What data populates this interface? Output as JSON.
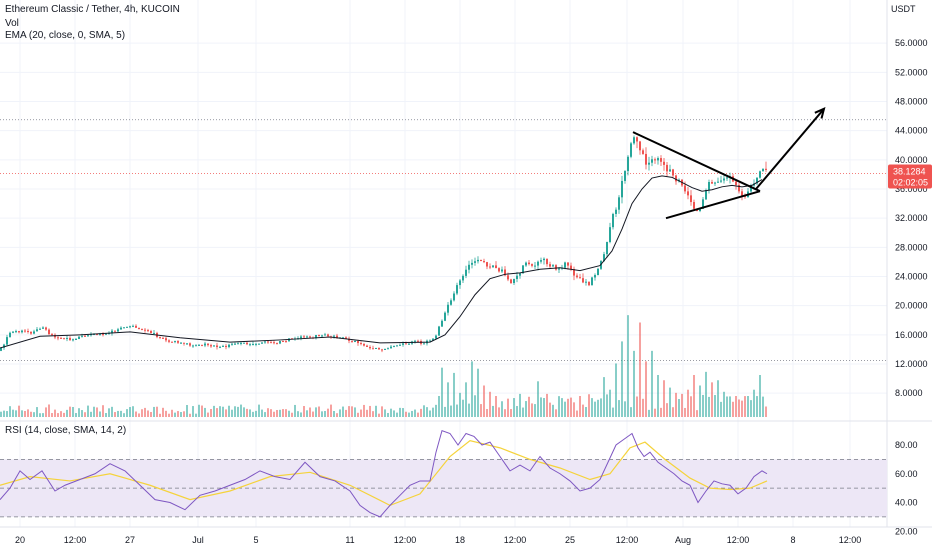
{
  "header": {
    "symbol_title": "Ethereum Classic / Tether, 4h, KUCOIN",
    "volume_label": "Vol",
    "ema_label": "EMA (20, close, 0, SMA, 5)",
    "currency": "USDT",
    "rsi_label": "RSI (14, close, SMA, 14, 2)"
  },
  "colors": {
    "up": "#26a69a",
    "down": "#ef5350",
    "ema": "#131722",
    "rsi": "#7e57c2",
    "rsi_ma": "#f5d33b",
    "rsi_band": "#ede7f6",
    "price_line": "#ef5350"
  },
  "price_badge": {
    "price": "38.1284",
    "countdown": "02:02:05"
  },
  "chart_data": [
    {
      "type": "candlestick",
      "title": "Ethereum Classic / Tether, 4h, KUCOIN",
      "x_ticks": [
        "20",
        "12:00",
        "27",
        "Jul",
        "5",
        "11",
        "12:00",
        "18",
        "12:00",
        "25",
        "12:00",
        "Aug",
        "12:00",
        "8",
        "12:00"
      ],
      "y_ticks": [
        "56.0000",
        "52.0000",
        "48.0000",
        "44.0000",
        "40.0000",
        "36.0000",
        "32.0000",
        "28.0000",
        "24.0000",
        "20.0000",
        "16.0000",
        "12.0000",
        "8.0000"
      ],
      "ylim": [
        6,
        58
      ],
      "last_price": 38.1284,
      "key_level": 45.5,
      "support_level": 12.5,
      "price_path": [
        [
          0,
          13.8
        ],
        [
          10,
          16.3
        ],
        [
          20,
          16.6
        ],
        [
          30,
          16.2
        ],
        [
          42,
          17.0
        ],
        [
          55,
          15.6
        ],
        [
          70,
          15.3
        ],
        [
          85,
          15.9
        ],
        [
          100,
          16.1
        ],
        [
          115,
          16.5
        ],
        [
          130,
          17.2
        ],
        [
          145,
          16.6
        ],
        [
          160,
          15.6
        ],
        [
          175,
          15.0
        ],
        [
          190,
          14.6
        ],
        [
          205,
          14.7
        ],
        [
          220,
          14.4
        ],
        [
          235,
          14.7
        ],
        [
          250,
          14.9
        ],
        [
          265,
          14.9
        ],
        [
          280,
          15.0
        ],
        [
          295,
          15.5
        ],
        [
          310,
          15.7
        ],
        [
          325,
          15.9
        ],
        [
          340,
          15.6
        ],
        [
          355,
          15.1
        ],
        [
          370,
          14.3
        ],
        [
          385,
          14.0
        ],
        [
          400,
          14.6
        ],
        [
          415,
          15.0
        ],
        [
          428,
          15.0
        ],
        [
          436,
          16.0
        ],
        [
          442,
          18.0
        ],
        [
          448,
          20.0
        ],
        [
          455,
          22.0
        ],
        [
          462,
          24.0
        ],
        [
          470,
          26.0
        ],
        [
          478,
          26.4
        ],
        [
          486,
          25.6
        ],
        [
          494,
          25.4
        ],
        [
          502,
          24.6
        ],
        [
          510,
          23.0
        ],
        [
          518,
          24.5
        ],
        [
          526,
          25.8
        ],
        [
          534,
          25.6
        ],
        [
          542,
          26.5
        ],
        [
          550,
          25.5
        ],
        [
          558,
          25.0
        ],
        [
          566,
          25.6
        ],
        [
          574,
          24.4
        ],
        [
          582,
          23.5
        ],
        [
          590,
          23.2
        ],
        [
          598,
          25.0
        ],
        [
          606,
          28.0
        ],
        [
          612,
          32.0
        ],
        [
          618,
          34.0
        ],
        [
          624,
          38.0
        ],
        [
          630,
          42.0
        ],
        [
          636,
          43.0
        ],
        [
          642,
          41.0
        ],
        [
          648,
          39.5
        ],
        [
          654,
          40.0
        ],
        [
          660,
          39.8
        ],
        [
          666,
          39.0
        ],
        [
          672,
          38.0
        ],
        [
          678,
          37.0
        ],
        [
          684,
          36.0
        ],
        [
          690,
          34.5
        ],
        [
          696,
          33.0
        ],
        [
          702,
          33.8
        ],
        [
          708,
          36.5
        ],
        [
          714,
          37.0
        ],
        [
          720,
          37.0
        ],
        [
          726,
          37.5
        ],
        [
          732,
          37.0
        ],
        [
          738,
          35.5
        ],
        [
          744,
          35.0
        ],
        [
          750,
          36.0
        ],
        [
          756,
          37.5
        ],
        [
          762,
          38.6
        ],
        [
          767,
          38.3
        ]
      ],
      "ema_path": [
        [
          0,
          14.2
        ],
        [
          40,
          15.8
        ],
        [
          80,
          16.0
        ],
        [
          130,
          16.4
        ],
        [
          180,
          15.6
        ],
        [
          230,
          15.0
        ],
        [
          280,
          15.3
        ],
        [
          330,
          15.7
        ],
        [
          380,
          14.9
        ],
        [
          430,
          15.0
        ],
        [
          445,
          16.0
        ],
        [
          460,
          18.5
        ],
        [
          475,
          21.5
        ],
        [
          490,
          23.7
        ],
        [
          505,
          24.3
        ],
        [
          520,
          24.5
        ],
        [
          540,
          25.0
        ],
        [
          560,
          25.2
        ],
        [
          580,
          24.8
        ],
        [
          600,
          25.5
        ],
        [
          612,
          27.5
        ],
        [
          622,
          30.5
        ],
        [
          632,
          34.0
        ],
        [
          642,
          36.0
        ],
        [
          652,
          37.5
        ],
        [
          662,
          37.8
        ],
        [
          672,
          37.6
        ],
        [
          682,
          36.9
        ],
        [
          692,
          36.2
        ],
        [
          702,
          35.7
        ],
        [
          712,
          35.9
        ],
        [
          722,
          36.3
        ],
        [
          732,
          36.5
        ],
        [
          742,
          36.3
        ],
        [
          752,
          36.5
        ],
        [
          762,
          37.3
        ]
      ],
      "triangle_upper": [
        [
          633,
          43.8
        ],
        [
          760,
          35.7
        ]
      ],
      "triangle_lower": [
        [
          666,
          32.0
        ],
        [
          760,
          35.7
        ]
      ],
      "breakout_arrow": [
        [
          756,
          36.0
        ],
        [
          824,
          47.0
        ]
      ],
      "volume_spikes": [
        [
          441,
          0.47
        ],
        [
          447,
          0.33
        ],
        [
          453,
          0.42
        ],
        [
          459,
          0.23
        ],
        [
          465,
          0.33
        ],
        [
          471,
          0.53
        ],
        [
          477,
          0.46
        ],
        [
          483,
          0.3
        ],
        [
          489,
          0.24
        ],
        [
          495,
          0.2
        ],
        [
          503,
          0.15
        ],
        [
          519,
          0.22
        ],
        [
          537,
          0.34
        ],
        [
          547,
          0.22
        ],
        [
          563,
          0.18
        ],
        [
          581,
          0.2
        ],
        [
          593,
          0.18
        ],
        [
          605,
          0.38
        ],
        [
          611,
          0.26
        ],
        [
          617,
          0.51
        ],
        [
          623,
          0.72
        ],
        [
          629,
          0.97
        ],
        [
          635,
          0.63
        ],
        [
          641,
          0.9
        ],
        [
          647,
          0.53
        ],
        [
          653,
          0.63
        ],
        [
          659,
          0.4
        ],
        [
          665,
          0.35
        ],
        [
          671,
          0.28
        ],
        [
          677,
          0.23
        ],
        [
          683,
          0.22
        ],
        [
          689,
          0.26
        ],
        [
          695,
          0.4
        ],
        [
          701,
          0.3
        ],
        [
          707,
          0.43
        ],
        [
          713,
          0.33
        ],
        [
          719,
          0.35
        ],
        [
          725,
          0.24
        ],
        [
          737,
          0.2
        ],
        [
          749,
          0.2
        ],
        [
          755,
          0.26
        ],
        [
          761,
          0.4
        ],
        [
          767,
          0.1
        ]
      ]
    },
    {
      "type": "line",
      "title": "RSI (14, close, SMA, 14, 2)",
      "y_ticks": [
        "80.00",
        "60.00",
        "40.00",
        "20.00"
      ],
      "ylim": [
        20,
        95
      ],
      "bands": [
        30,
        50,
        70
      ],
      "series": [
        {
          "role": "rsi",
          "values": [
            [
              0,
              42
            ],
            [
              10,
              50
            ],
            [
              20,
              62
            ],
            [
              30,
              56
            ],
            [
              42,
              62
            ],
            [
              55,
              48
            ],
            [
              65,
              52
            ],
            [
              80,
              56
            ],
            [
              95,
              60
            ],
            [
              110,
              67
            ],
            [
              125,
              62
            ],
            [
              140,
              52
            ],
            [
              155,
              42
            ],
            [
              170,
              40
            ],
            [
              185,
              35
            ],
            [
              200,
              45
            ],
            [
              215,
              48
            ],
            [
              230,
              52
            ],
            [
              245,
              56
            ],
            [
              260,
              62
            ],
            [
              275,
              58
            ],
            [
              290,
              56
            ],
            [
              305,
              68
            ],
            [
              320,
              58
            ],
            [
              335,
              55
            ],
            [
              350,
              48
            ],
            [
              360,
              38
            ],
            [
              370,
              33
            ],
            [
              380,
              30
            ],
            [
              390,
              38
            ],
            [
              400,
              45
            ],
            [
              410,
              52
            ],
            [
              420,
              55
            ],
            [
              430,
              55
            ],
            [
              436,
              75
            ],
            [
              442,
              90
            ],
            [
              450,
              88
            ],
            [
              458,
              80
            ],
            [
              466,
              88
            ],
            [
              474,
              86
            ],
            [
              482,
              80
            ],
            [
              490,
              82
            ],
            [
              500,
              72
            ],
            [
              510,
              62
            ],
            [
              520,
              66
            ],
            [
              530,
              62
            ],
            [
              540,
              72
            ],
            [
              550,
              64
            ],
            [
              560,
              60
            ],
            [
              570,
              55
            ],
            [
              580,
              48
            ],
            [
              590,
              50
            ],
            [
              600,
              56
            ],
            [
              608,
              68
            ],
            [
              616,
              80
            ],
            [
              624,
              84
            ],
            [
              632,
              88
            ],
            [
              638,
              78
            ],
            [
              644,
              72
            ],
            [
              650,
              75
            ],
            [
              658,
              68
            ],
            [
              666,
              64
            ],
            [
              674,
              60
            ],
            [
              682,
              55
            ],
            [
              690,
              52
            ],
            [
              698,
              40
            ],
            [
              706,
              48
            ],
            [
              714,
              55
            ],
            [
              722,
              53
            ],
            [
              730,
              52
            ],
            [
              738,
              46
            ],
            [
              746,
              50
            ],
            [
              754,
              58
            ],
            [
              762,
              62
            ],
            [
              767,
              60
            ]
          ]
        },
        {
          "role": "rsi_ma",
          "values": [
            [
              0,
              52
            ],
            [
              30,
              58
            ],
            [
              70,
              55
            ],
            [
              110,
              60
            ],
            [
              150,
              52
            ],
            [
              190,
              42
            ],
            [
              230,
              48
            ],
            [
              270,
              58
            ],
            [
              310,
              61
            ],
            [
              350,
              52
            ],
            [
              390,
              38
            ],
            [
              420,
              46
            ],
            [
              450,
              72
            ],
            [
              470,
              83
            ],
            [
              500,
              78
            ],
            [
              530,
              70
            ],
            [
              560,
              64
            ],
            [
              590,
              56
            ],
            [
              610,
              60
            ],
            [
              630,
              78
            ],
            [
              645,
              82
            ],
            [
              665,
              70
            ],
            [
              690,
              57
            ],
            [
              710,
              50
            ],
            [
              730,
              49
            ],
            [
              750,
              50
            ],
            [
              767,
              55
            ]
          ]
        }
      ]
    }
  ]
}
